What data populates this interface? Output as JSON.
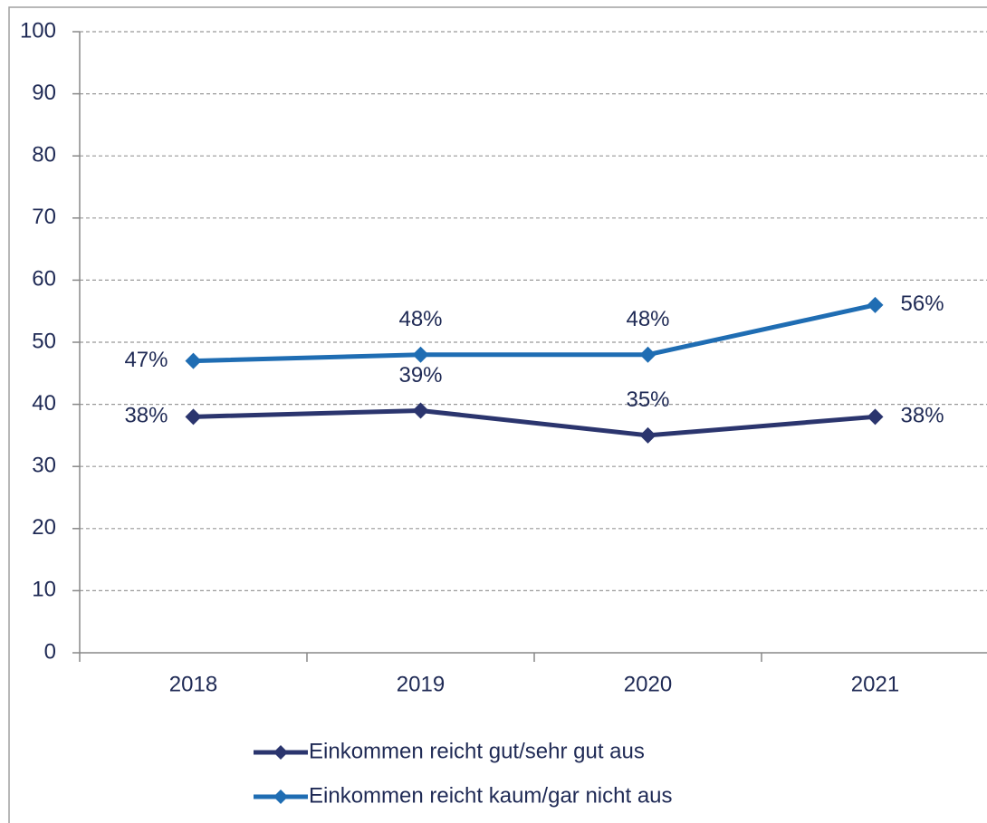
{
  "chart_data": {
    "type": "line",
    "categories": [
      "2018",
      "2019",
      "2020",
      "2021"
    ],
    "series": [
      {
        "name": "Einkommen reicht gut/sehr gut aus",
        "color": "#2b356e",
        "values": [
          38,
          39,
          35,
          38
        ],
        "value_labels": [
          "38%",
          "39%",
          "35%",
          "38%"
        ]
      },
      {
        "name": "Einkommen reicht kaum/gar nicht aus",
        "color": "#1f6db3",
        "values": [
          47,
          48,
          48,
          56
        ],
        "value_labels": [
          "47%",
          "48%",
          "48%",
          "56%"
        ]
      }
    ],
    "ylim": [
      0,
      100
    ],
    "yticks": [
      0,
      10,
      20,
      30,
      40,
      50,
      60,
      70,
      80,
      90,
      100
    ],
    "grid": true,
    "legend": "bottom"
  }
}
